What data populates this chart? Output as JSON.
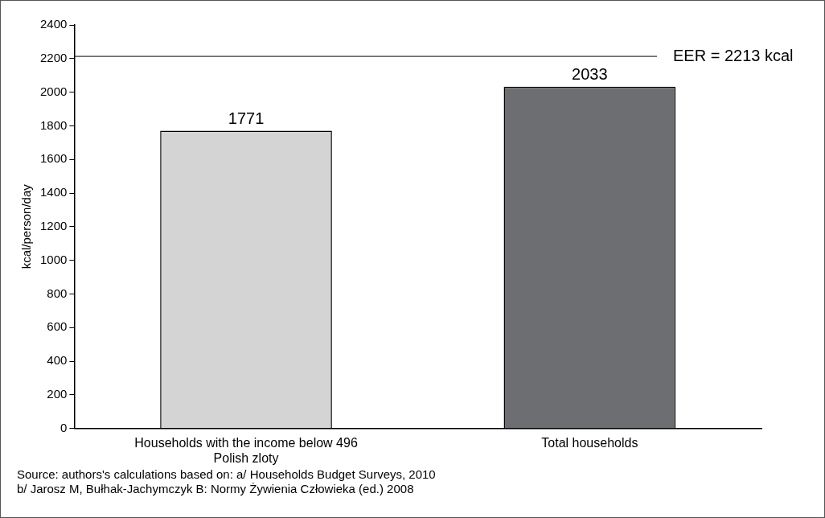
{
  "chart_data": {
    "type": "bar",
    "ylabel": "kcal/person/day",
    "categories": [
      "Households with the income below 496 Polish zloty",
      "Total households"
    ],
    "values": [
      1771,
      2033
    ],
    "colors": [
      "#d4d4d4",
      "#6d6e71"
    ],
    "ylim": [
      0,
      2400
    ],
    "yticks": [
      0,
      200,
      400,
      600,
      800,
      1000,
      1200,
      1400,
      1600,
      1800,
      2000,
      2200,
      2400
    ],
    "grid": false,
    "data_labels": true,
    "ref_lines": [
      {
        "axis": "y",
        "value": 2213,
        "label": "EER = 2213 kcal",
        "color": "#000000"
      }
    ],
    "annotations": [
      "Source: authors's calculations based on: a/ Households Budget Surveys, 2010",
      "b/ Jarosz M, Bułhak-Jachymczyk B: Normy Żywienia Człowieka (ed.) 2008"
    ]
  }
}
